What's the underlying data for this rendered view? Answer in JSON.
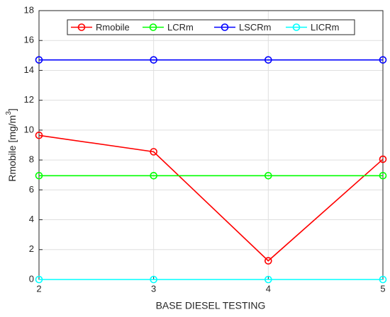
{
  "chart_data": {
    "type": "line",
    "xlabel": "BASE DIESEL TESTING",
    "ylabel": [
      "Rmobile [mg/m",
      "3",
      "]"
    ],
    "x": [
      2,
      3,
      4,
      5
    ],
    "xlim": [
      2,
      5
    ],
    "xticks": [
      2,
      3,
      4,
      5
    ],
    "ylim": [
      0,
      18
    ],
    "yticks": [
      0,
      2,
      4,
      6,
      8,
      10,
      12,
      14,
      16,
      18
    ],
    "grid": true,
    "legend": "top",
    "series": [
      {
        "name": "Rmobile",
        "color": "#ff0000",
        "values": [
          9.65,
          8.55,
          1.25,
          8.05
        ]
      },
      {
        "name": "LCRm",
        "color": "#00ff00",
        "values": [
          6.95,
          6.95,
          6.95,
          6.95
        ]
      },
      {
        "name": "LSCRm",
        "color": "#0000ff",
        "values": [
          14.7,
          14.7,
          14.7,
          14.7
        ]
      },
      {
        "name": "LICRm",
        "color": "#00ffff",
        "values": [
          0,
          0,
          0,
          0
        ]
      }
    ]
  }
}
